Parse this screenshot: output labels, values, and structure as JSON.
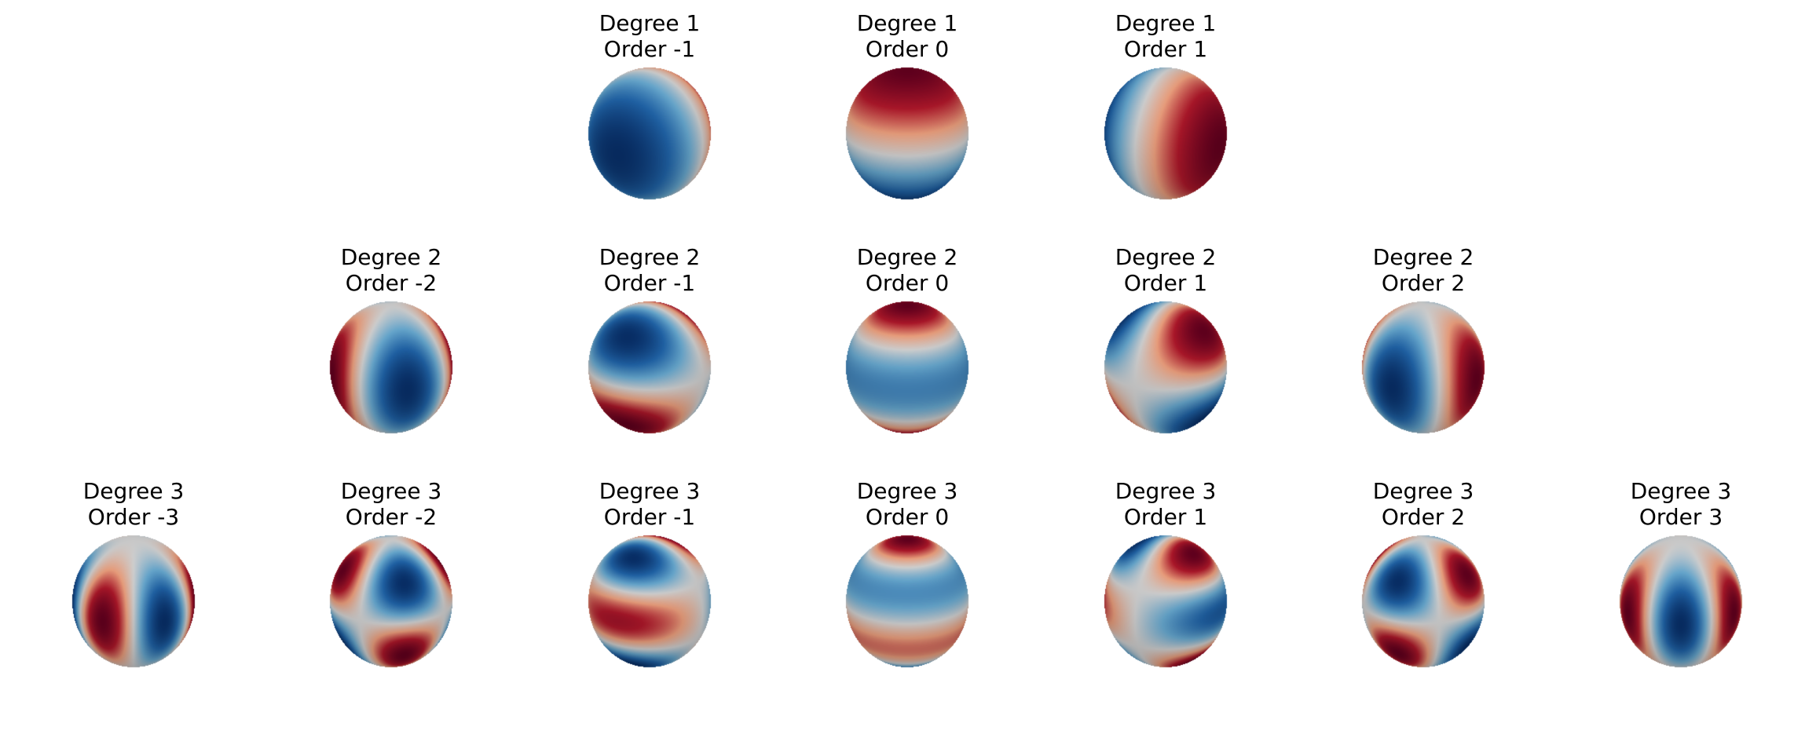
{
  "figure": {
    "colormap": [
      "#08306b",
      "#2166ac",
      "#6baed6",
      "#d9d9d9",
      "#f4a582",
      "#b2182b",
      "#67001f"
    ],
    "panels": [
      {
        "degree_label": "Degree 1",
        "order_label": "Order -1",
        "degree": 1,
        "order": -1
      },
      {
        "degree_label": "Degree 1",
        "order_label": "Order 0",
        "degree": 1,
        "order": 0
      },
      {
        "degree_label": "Degree 1",
        "order_label": "Order 1",
        "degree": 1,
        "order": 1
      },
      {
        "degree_label": "Degree 2",
        "order_label": "Order -2",
        "degree": 2,
        "order": -2
      },
      {
        "degree_label": "Degree 2",
        "order_label": "Order -1",
        "degree": 2,
        "order": -1
      },
      {
        "degree_label": "Degree 2",
        "order_label": "Order 0",
        "degree": 2,
        "order": 0
      },
      {
        "degree_label": "Degree 2",
        "order_label": "Order 1",
        "degree": 2,
        "order": 1
      },
      {
        "degree_label": "Degree 2",
        "order_label": "Order 2",
        "degree": 2,
        "order": 2
      },
      {
        "degree_label": "Degree 3",
        "order_label": "Order -3",
        "degree": 3,
        "order": -3
      },
      {
        "degree_label": "Degree 3",
        "order_label": "Order -2",
        "degree": 3,
        "order": -2
      },
      {
        "degree_label": "Degree 3",
        "order_label": "Order -1",
        "degree": 3,
        "order": -1
      },
      {
        "degree_label": "Degree 3",
        "order_label": "Order 0",
        "degree": 3,
        "order": 0
      },
      {
        "degree_label": "Degree 3",
        "order_label": "Order 1",
        "degree": 3,
        "order": 1
      },
      {
        "degree_label": "Degree 3",
        "order_label": "Order 2",
        "degree": 3,
        "order": 2
      },
      {
        "degree_label": "Degree 3",
        "order_label": "Order 3",
        "degree": 3,
        "order": 3
      }
    ]
  }
}
